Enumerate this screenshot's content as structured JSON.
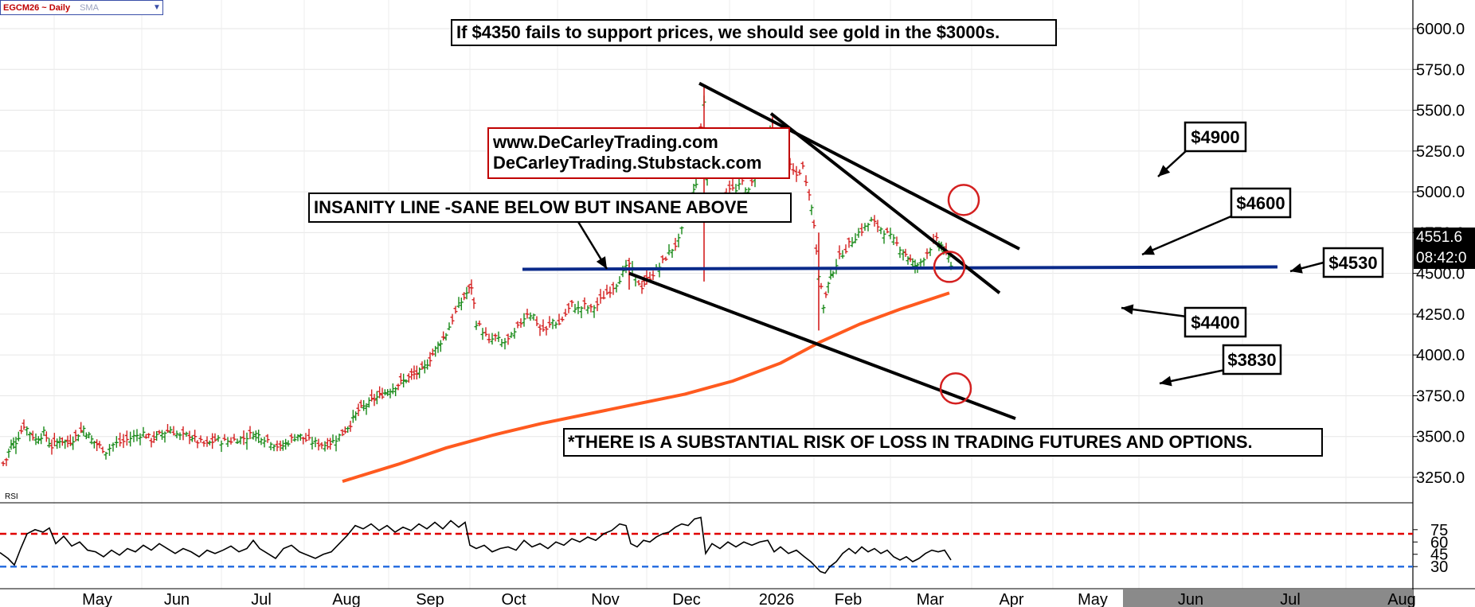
{
  "header": {
    "symbol": "EGCM26 ~ Daily",
    "indicator": "SMA"
  },
  "annotations": {
    "headline": "If $4350 fails to support prices, we should see gold in the $3000s.",
    "website1": "www.DeCarleyTrading.com",
    "website2": "DeCarleyTrading.Stubstack.com",
    "insanity": "INSANITY LINE -SANE BELOW BUT INSANE ABOVE",
    "risk": "*THERE IS A SUBSTANTIAL RISK OF LOSS IN TRADING FUTURES AND OPTIONS.",
    "rsi_label": "RSI"
  },
  "price_labels": {
    "last_price": "4551.6",
    "clock": "08:42:0"
  },
  "chart_data": {
    "type": "ohlc",
    "x_ticks": [
      "May",
      "Jun",
      "Jul",
      "Aug",
      "Sep",
      "Oct",
      "Nov",
      "Dec",
      "2026",
      "Feb",
      "Mar",
      "Apr",
      "May",
      "Jun",
      "Jul",
      "Aug"
    ],
    "y_ticks": [
      "6000.0",
      "5750.0",
      "5500.0",
      "5250.0",
      "5000.0",
      "4750.0",
      "4500.0",
      "4250.0",
      "4000.0",
      "3750.0",
      "3500.0",
      "3250.0"
    ],
    "ylim": [
      3200,
      6100
    ],
    "rsi_ticks": [
      "75",
      "60",
      "45",
      "30"
    ],
    "rsi_levels": {
      "upper": 70,
      "lower": 30
    },
    "colors": {
      "up": "#1a8a1a",
      "down": "#d42020",
      "sma": "#ff5a1f",
      "support": "#0a2a8a",
      "trend": "#000000",
      "circle": "#d42020",
      "rsi_upper": "#e00000",
      "rsi_lower": "#2a6fe0"
    },
    "price_path": [
      [
        0,
        3310
      ],
      [
        8,
        3360
      ],
      [
        14,
        3450
      ],
      [
        20,
        3470
      ],
      [
        30,
        3570
      ],
      [
        45,
        3480
      ],
      [
        55,
        3520
      ],
      [
        65,
        3440
      ],
      [
        75,
        3480
      ],
      [
        85,
        3460
      ],
      [
        95,
        3500
      ],
      [
        105,
        3550
      ],
      [
        115,
        3480
      ],
      [
        125,
        3440
      ],
      [
        133,
        3410
      ],
      [
        142,
        3450
      ],
      [
        155,
        3470
      ],
      [
        168,
        3500
      ],
      [
        180,
        3520
      ],
      [
        190,
        3480
      ],
      [
        200,
        3510
      ],
      [
        214,
        3545
      ],
      [
        226,
        3500
      ],
      [
        238,
        3510
      ],
      [
        248,
        3470
      ],
      [
        260,
        3450
      ],
      [
        270,
        3480
      ],
      [
        282,
        3470
      ],
      [
        294,
        3480
      ],
      [
        306,
        3490
      ],
      [
        318,
        3520
      ],
      [
        328,
        3500
      ],
      [
        340,
        3470
      ],
      [
        352,
        3430
      ],
      [
        362,
        3470
      ],
      [
        374,
        3510
      ],
      [
        384,
        3480
      ],
      [
        396,
        3460
      ],
      [
        408,
        3450
      ],
      [
        418,
        3470
      ],
      [
        430,
        3520
      ],
      [
        440,
        3580
      ],
      [
        450,
        3660
      ],
      [
        460,
        3690
      ],
      [
        470,
        3730
      ],
      [
        480,
        3760
      ],
      [
        490,
        3790
      ],
      [
        500,
        3820
      ],
      [
        510,
        3850
      ],
      [
        520,
        3880
      ],
      [
        530,
        3900
      ],
      [
        540,
        3980
      ],
      [
        550,
        4060
      ],
      [
        560,
        4130
      ],
      [
        568,
        4220
      ],
      [
        576,
        4300
      ],
      [
        586,
        4380
      ],
      [
        592,
        4420
      ],
      [
        598,
        4200
      ],
      [
        606,
        4150
      ],
      [
        614,
        4080
      ],
      [
        622,
        4110
      ],
      [
        630,
        4070
      ],
      [
        638,
        4090
      ],
      [
        646,
        4130
      ],
      [
        654,
        4200
      ],
      [
        662,
        4260
      ],
      [
        670,
        4240
      ],
      [
        678,
        4160
      ],
      [
        686,
        4150
      ],
      [
        694,
        4210
      ],
      [
        702,
        4190
      ],
      [
        710,
        4250
      ],
      [
        718,
        4310
      ],
      [
        726,
        4280
      ],
      [
        734,
        4300
      ],
      [
        742,
        4280
      ],
      [
        750,
        4310
      ],
      [
        758,
        4360
      ],
      [
        766,
        4400
      ],
      [
        774,
        4440
      ],
      [
        782,
        4500
      ],
      [
        790,
        4560
      ],
      [
        798,
        4470
      ],
      [
        806,
        4420
      ],
      [
        812,
        4460
      ],
      [
        820,
        4500
      ],
      [
        828,
        4540
      ],
      [
        836,
        4600
      ],
      [
        844,
        4650
      ],
      [
        852,
        4700
      ],
      [
        860,
        4820
      ],
      [
        868,
        4950
      ],
      [
        874,
        5060
      ],
      [
        880,
        5400
      ],
      [
        884,
        5550
      ],
      [
        888,
        5100
      ],
      [
        892,
        4850
      ],
      [
        900,
        4900
      ],
      [
        908,
        4950
      ],
      [
        916,
        5030
      ],
      [
        924,
        5000
      ],
      [
        932,
        5060
      ],
      [
        940,
        5000
      ],
      [
        948,
        5100
      ],
      [
        956,
        5230
      ],
      [
        964,
        5300
      ],
      [
        970,
        5420
      ],
      [
        976,
        5280
      ],
      [
        984,
        5200
      ],
      [
        992,
        5150
      ],
      [
        1000,
        5100
      ],
      [
        1008,
        5150
      ],
      [
        1016,
        5000
      ],
      [
        1022,
        4800
      ],
      [
        1028,
        4500
      ],
      [
        1034,
        4300
      ],
      [
        1040,
        4430
      ],
      [
        1046,
        4520
      ],
      [
        1054,
        4600
      ],
      [
        1062,
        4650
      ],
      [
        1070,
        4700
      ],
      [
        1078,
        4750
      ],
      [
        1086,
        4780
      ],
      [
        1094,
        4820
      ],
      [
        1102,
        4790
      ],
      [
        1110,
        4760
      ],
      [
        1118,
        4720
      ],
      [
        1126,
        4680
      ],
      [
        1134,
        4640
      ],
      [
        1140,
        4600
      ],
      [
        1146,
        4560
      ],
      [
        1152,
        4540
      ],
      [
        1160,
        4600
      ],
      [
        1168,
        4660
      ],
      [
        1176,
        4700
      ],
      [
        1182,
        4670
      ],
      [
        1188,
        4620
      ],
      [
        1194,
        4560
      ]
    ],
    "sma": {
      "name": "SMA",
      "points": [
        [
          430,
          3225
        ],
        [
          500,
          3330
        ],
        [
          560,
          3430
        ],
        [
          620,
          3510
        ],
        [
          680,
          3580
        ],
        [
          740,
          3640
        ],
        [
          800,
          3700
        ],
        [
          860,
          3760
        ],
        [
          920,
          3840
        ],
        [
          980,
          3950
        ],
        [
          1030,
          4080
        ],
        [
          1080,
          4190
        ],
        [
          1130,
          4280
        ],
        [
          1192,
          4380
        ]
      ]
    },
    "support_line": {
      "value": 4530,
      "label": "$4530"
    },
    "trendlines": [
      {
        "from": [
          878,
          5665
        ],
        "to": [
          1280,
          4650
        ]
      },
      {
        "from": [
          968,
          5480
        ],
        "to": [
          1255,
          4380
        ]
      },
      {
        "from": [
          790,
          4500
        ],
        "to": [
          1275,
          3610
        ]
      }
    ],
    "target_labels": [
      "$4900",
      "$4600",
      "$4530",
      "$4400",
      "$3830"
    ],
    "target_circles": [
      {
        "x": 1210,
        "value": 4950
      },
      {
        "x": 1192,
        "value": 4540
      },
      {
        "x": 1200,
        "value": 3795
      }
    ],
    "rsi_series": [
      [
        0,
        47
      ],
      [
        10,
        40
      ],
      [
        18,
        32
      ],
      [
        26,
        52
      ],
      [
        34,
        70
      ],
      [
        44,
        75
      ],
      [
        54,
        72
      ],
      [
        62,
        77
      ],
      [
        70,
        58
      ],
      [
        80,
        67
      ],
      [
        90,
        55
      ],
      [
        100,
        60
      ],
      [
        110,
        50
      ],
      [
        120,
        48
      ],
      [
        130,
        42
      ],
      [
        140,
        50
      ],
      [
        150,
        44
      ],
      [
        160,
        52
      ],
      [
        170,
        48
      ],
      [
        180,
        56
      ],
      [
        190,
        50
      ],
      [
        200,
        58
      ],
      [
        210,
        52
      ],
      [
        220,
        46
      ],
      [
        230,
        52
      ],
      [
        240,
        48
      ],
      [
        250,
        42
      ],
      [
        260,
        50
      ],
      [
        270,
        46
      ],
      [
        280,
        50
      ],
      [
        290,
        55
      ],
      [
        300,
        48
      ],
      [
        310,
        52
      ],
      [
        318,
        62
      ],
      [
        326,
        52
      ],
      [
        336,
        46
      ],
      [
        346,
        40
      ],
      [
        356,
        52
      ],
      [
        366,
        56
      ],
      [
        376,
        48
      ],
      [
        386,
        44
      ],
      [
        396,
        40
      ],
      [
        406,
        45
      ],
      [
        416,
        48
      ],
      [
        426,
        58
      ],
      [
        436,
        68
      ],
      [
        446,
        80
      ],
      [
        456,
        76
      ],
      [
        466,
        82
      ],
      [
        476,
        74
      ],
      [
        486,
        80
      ],
      [
        496,
        72
      ],
      [
        506,
        78
      ],
      [
        516,
        74
      ],
      [
        526,
        82
      ],
      [
        536,
        76
      ],
      [
        546,
        84
      ],
      [
        556,
        76
      ],
      [
        566,
        86
      ],
      [
        576,
        78
      ],
      [
        584,
        84
      ],
      [
        590,
        56
      ],
      [
        598,
        52
      ],
      [
        608,
        56
      ],
      [
        618,
        48
      ],
      [
        628,
        52
      ],
      [
        638,
        54
      ],
      [
        648,
        50
      ],
      [
        658,
        62
      ],
      [
        668,
        54
      ],
      [
        678,
        58
      ],
      [
        688,
        52
      ],
      [
        698,
        60
      ],
      [
        708,
        56
      ],
      [
        718,
        64
      ],
      [
        728,
        60
      ],
      [
        738,
        66
      ],
      [
        748,
        62
      ],
      [
        758,
        70
      ],
      [
        768,
        74
      ],
      [
        778,
        82
      ],
      [
        786,
        80
      ],
      [
        792,
        58
      ],
      [
        800,
        54
      ],
      [
        808,
        62
      ],
      [
        816,
        60
      ],
      [
        824,
        66
      ],
      [
        832,
        70
      ],
      [
        840,
        72
      ],
      [
        848,
        78
      ],
      [
        856,
        82
      ],
      [
        864,
        80
      ],
      [
        872,
        88
      ],
      [
        880,
        90
      ],
      [
        886,
        46
      ],
      [
        894,
        58
      ],
      [
        904,
        52
      ],
      [
        914,
        60
      ],
      [
        924,
        54
      ],
      [
        934,
        60
      ],
      [
        944,
        56
      ],
      [
        954,
        60
      ],
      [
        964,
        62
      ],
      [
        972,
        48
      ],
      [
        980,
        54
      ],
      [
        990,
        46
      ],
      [
        1000,
        50
      ],
      [
        1010,
        42
      ],
      [
        1018,
        36
      ],
      [
        1024,
        30
      ],
      [
        1030,
        24
      ],
      [
        1036,
        22
      ],
      [
        1042,
        30
      ],
      [
        1050,
        36
      ],
      [
        1058,
        46
      ],
      [
        1066,
        52
      ],
      [
        1074,
        46
      ],
      [
        1082,
        54
      ],
      [
        1090,
        48
      ],
      [
        1098,
        52
      ],
      [
        1106,
        46
      ],
      [
        1114,
        50
      ],
      [
        1122,
        42
      ],
      [
        1130,
        38
      ],
      [
        1138,
        42
      ],
      [
        1146,
        36
      ],
      [
        1154,
        40
      ],
      [
        1162,
        46
      ],
      [
        1170,
        50
      ],
      [
        1178,
        48
      ],
      [
        1186,
        50
      ],
      [
        1194,
        38
      ]
    ]
  }
}
